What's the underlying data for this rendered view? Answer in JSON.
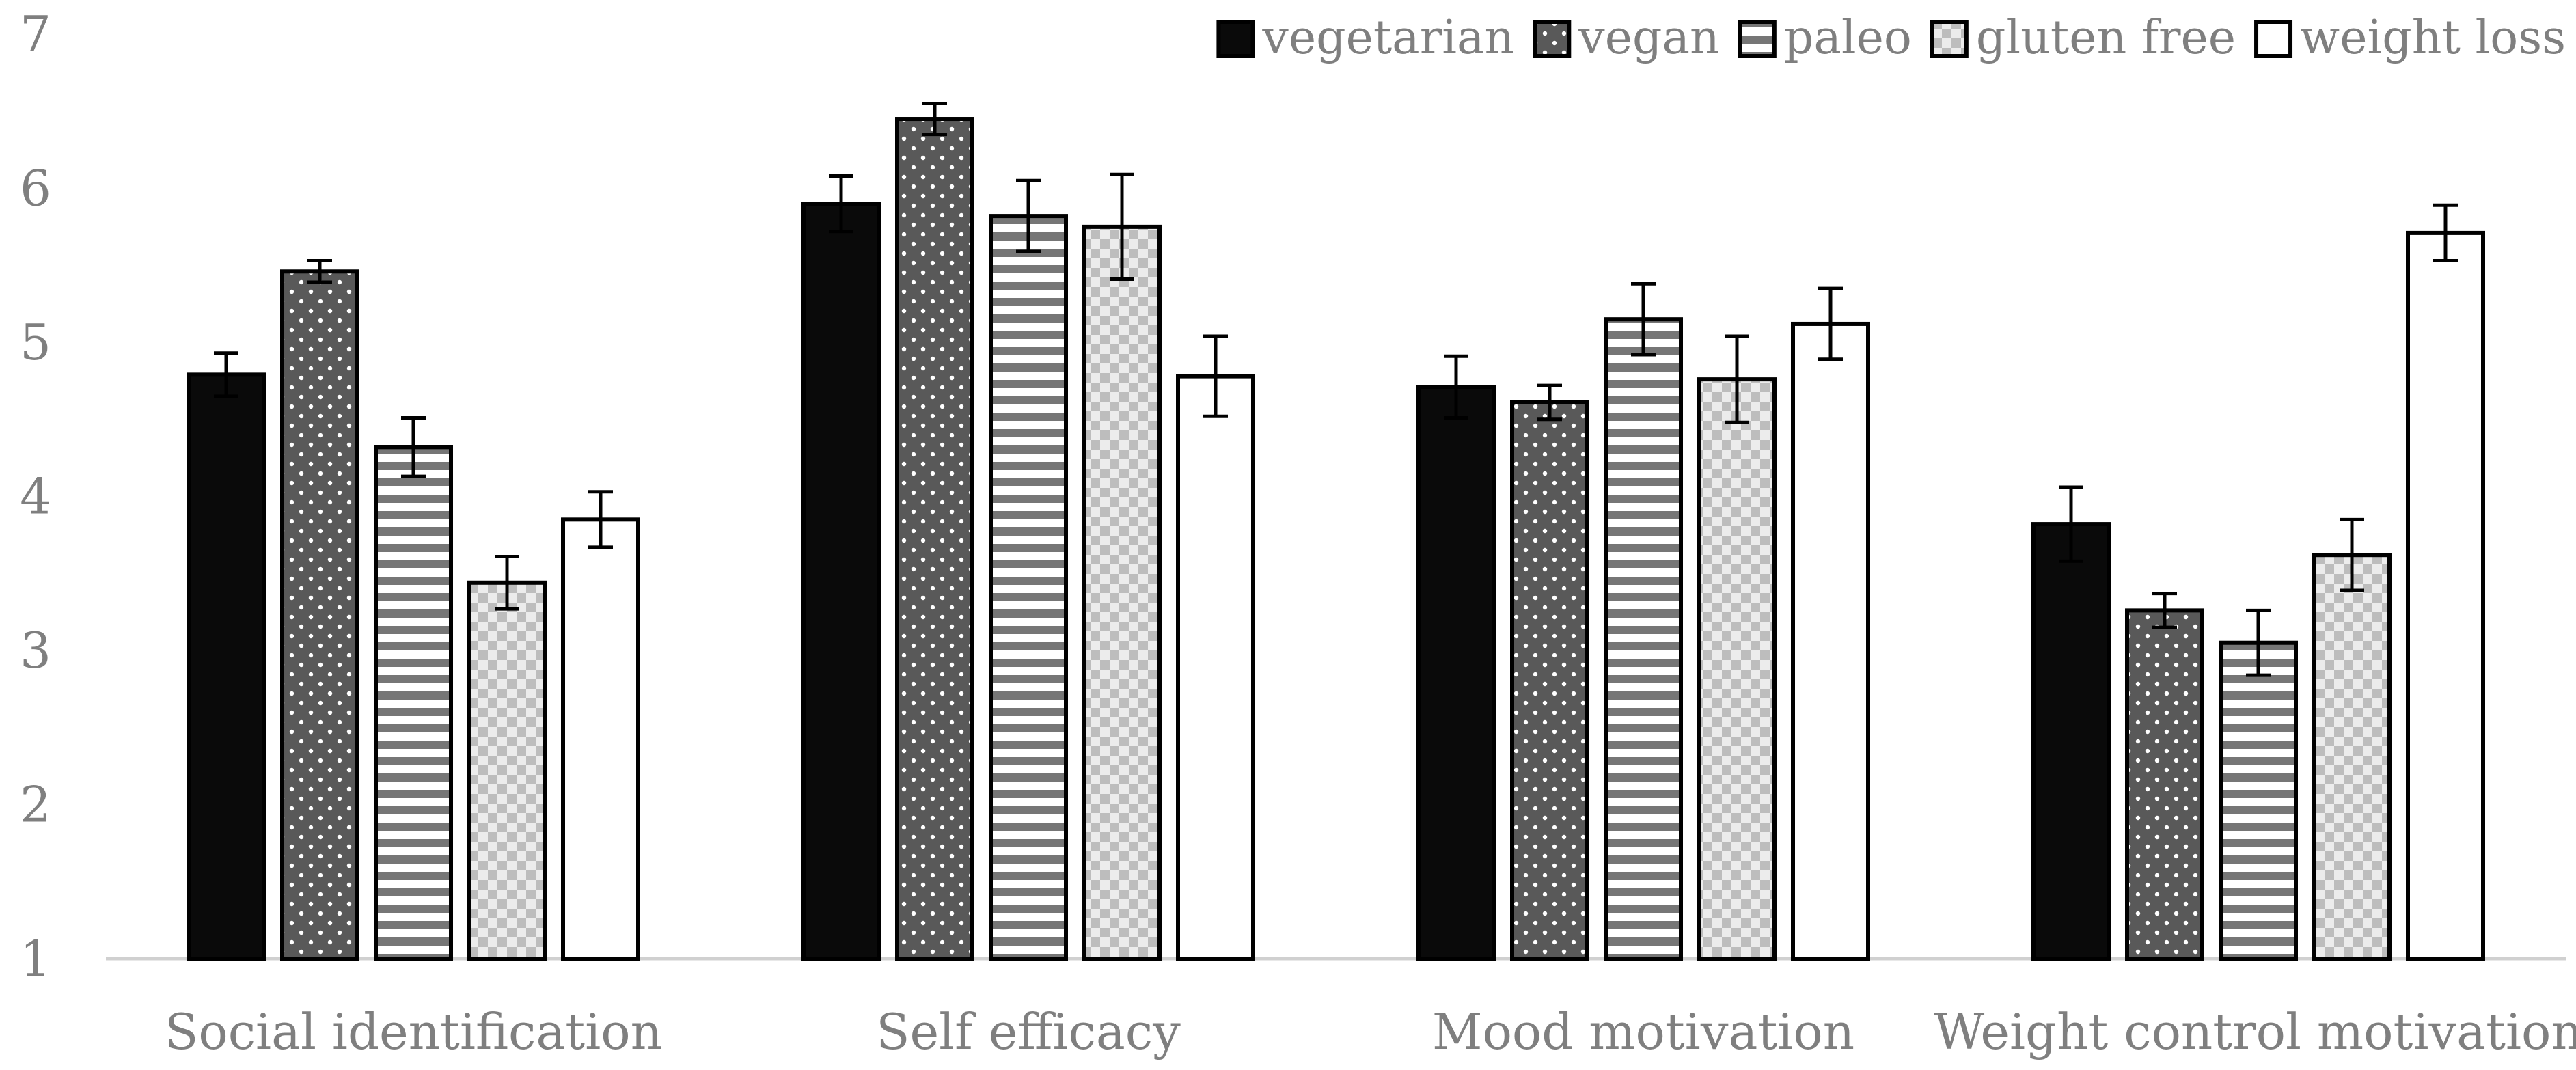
{
  "chart_data": {
    "type": "bar",
    "title": "",
    "xlabel": "",
    "ylabel": "",
    "ylim": [
      1,
      7
    ],
    "yticks": [
      1,
      2,
      3,
      4,
      5,
      6,
      7
    ],
    "categories": [
      "Social identification",
      "Self efficacy",
      "Mood motivation",
      "Weight control motivation"
    ],
    "legend_position": "top-right",
    "grid": false,
    "series": [
      {
        "name": "vegetarian",
        "pattern": "solid-black",
        "values": [
          4.79,
          5.9,
          4.71,
          3.82
        ],
        "errors": [
          0.14,
          0.18,
          0.2,
          0.24
        ]
      },
      {
        "name": "vegan",
        "pattern": "dots",
        "values": [
          5.46,
          6.45,
          4.61,
          3.26
        ],
        "errors": [
          0.07,
          0.1,
          0.11,
          0.11
        ]
      },
      {
        "name": "paleo",
        "pattern": "horizontal-stripes",
        "values": [
          4.32,
          5.82,
          5.15,
          3.05
        ],
        "errors": [
          0.19,
          0.23,
          0.23,
          0.21
        ]
      },
      {
        "name": "gluten free",
        "pattern": "checkerboard",
        "values": [
          3.44,
          5.75,
          4.76,
          3.62
        ],
        "errors": [
          0.17,
          0.34,
          0.28,
          0.23
        ]
      },
      {
        "name": "weight loss",
        "pattern": "white",
        "values": [
          3.85,
          4.78,
          5.12,
          5.71
        ],
        "errors": [
          0.18,
          0.26,
          0.23,
          0.18
        ]
      }
    ]
  },
  "colors": {
    "axis_text": "#7f7f7f",
    "axis_line": "#d0d0d0",
    "bar_outline": "#000000",
    "dark_fill": "#0a0a0a",
    "dot_bg": "#5a5a5a"
  }
}
